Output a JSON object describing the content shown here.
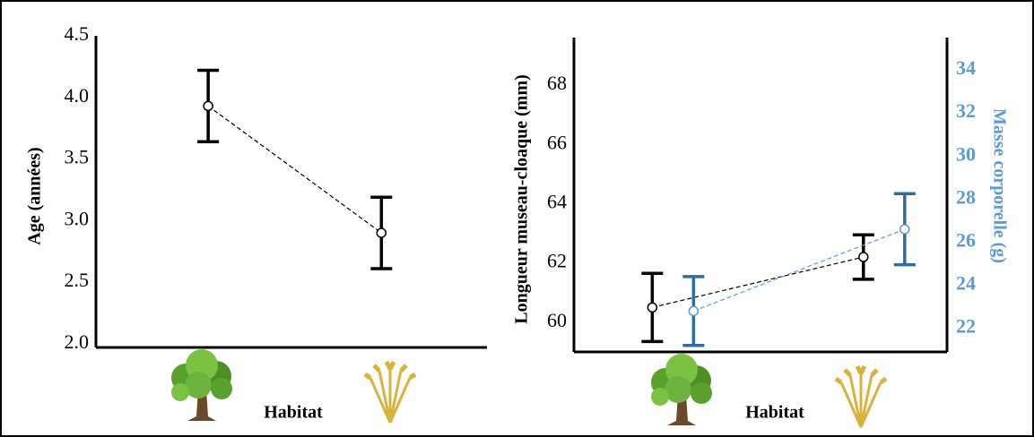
{
  "chart_data": [
    {
      "type": "errorbar",
      "categories": [
        null,
        null
      ],
      "xlabel": "Habitat",
      "ylabel": "Age (années)",
      "ylim": [
        1.97,
        4.5
      ],
      "yticks": [
        {
          "value": 2.0,
          "label": "2.0"
        },
        2.5,
        {
          "value": 3.0,
          "label": "3.0"
        },
        3.5,
        {
          "value": 4.0,
          "label": "4.0"
        },
        4.5
      ],
      "series": [
        {
          "color": "#000000",
          "values": [
            3.93,
            2.9
          ],
          "errors": [
            0.29,
            0.29
          ]
        }
      ]
    },
    {
      "type": "errorbar",
      "categories": [
        null,
        null
      ],
      "xlabel": "Habitat",
      "ylabel": "Longueur museau-cloaque (mm)",
      "y2label": "Masse corporelle (g)",
      "ylim": [
        59.0,
        69.6
      ],
      "yticks": [
        60,
        62,
        64,
        66,
        68
      ],
      "y2lim": [
        20.9,
        35.5
      ],
      "y2ticks": [
        22,
        24,
        26,
        28,
        30,
        32,
        34
      ],
      "series": [
        {
          "color": "#000000",
          "values": [
            60.5,
            62.2
          ],
          "errors": [
            1.15,
            0.75
          ]
        },
        {
          "color": "#2e6da4",
          "axis": "y2",
          "values": [
            22.8,
            26.6
          ],
          "errors": [
            1.6,
            1.65
          ]
        }
      ]
    }
  ]
}
